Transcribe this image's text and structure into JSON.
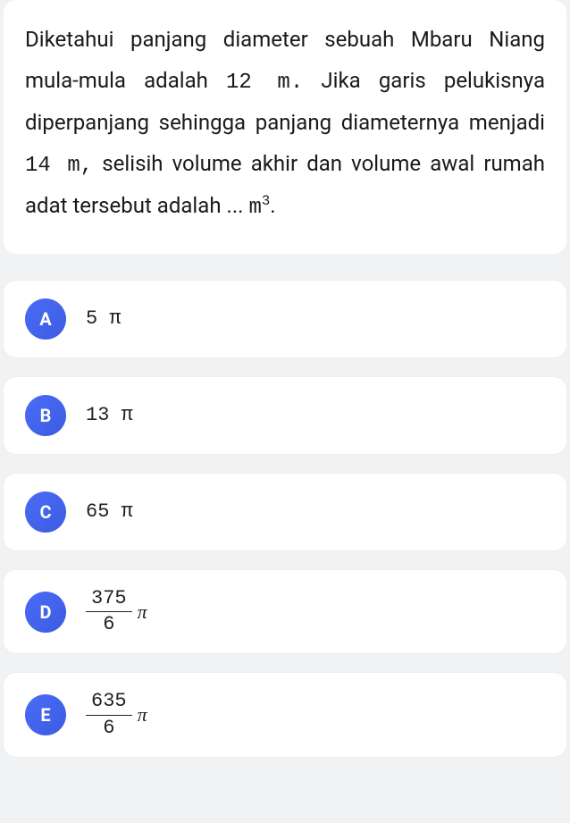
{
  "question": {
    "pre1": "Diketahui panjang diameter sebuah Mbaru Niang mula-mula adalah ",
    "val1": "12 m.",
    "mid1": " Jika garis pelukisnya diperpanjang sehingga panjang diameternya menjadi ",
    "val2": "14 m,",
    "post": " selisih volume akhir dan volume awal rumah adat tersebut adalah ... ",
    "unit_base": "m",
    "unit_exp": "3",
    "unit_suffix": "."
  },
  "options": [
    {
      "letter": "A",
      "type": "simple",
      "text": "5 π"
    },
    {
      "letter": "B",
      "type": "simple",
      "text": "13 π"
    },
    {
      "letter": "C",
      "type": "simple",
      "text": "65 π"
    },
    {
      "letter": "D",
      "type": "fraction",
      "num": "375",
      "den": "6",
      "suffix": "π"
    },
    {
      "letter": "E",
      "type": "fraction",
      "num": "635",
      "den": "6",
      "suffix": "π"
    }
  ],
  "style": {
    "page_bg": "#f1f2f4",
    "card_bg": "#ffffff",
    "badge_gradient_from": "#4a6cf7",
    "badge_gradient_to": "#3b5ce0",
    "badge_text_color": "#ffffff",
    "text_color": "#1a1a1a",
    "answer_color": "#222222"
  }
}
